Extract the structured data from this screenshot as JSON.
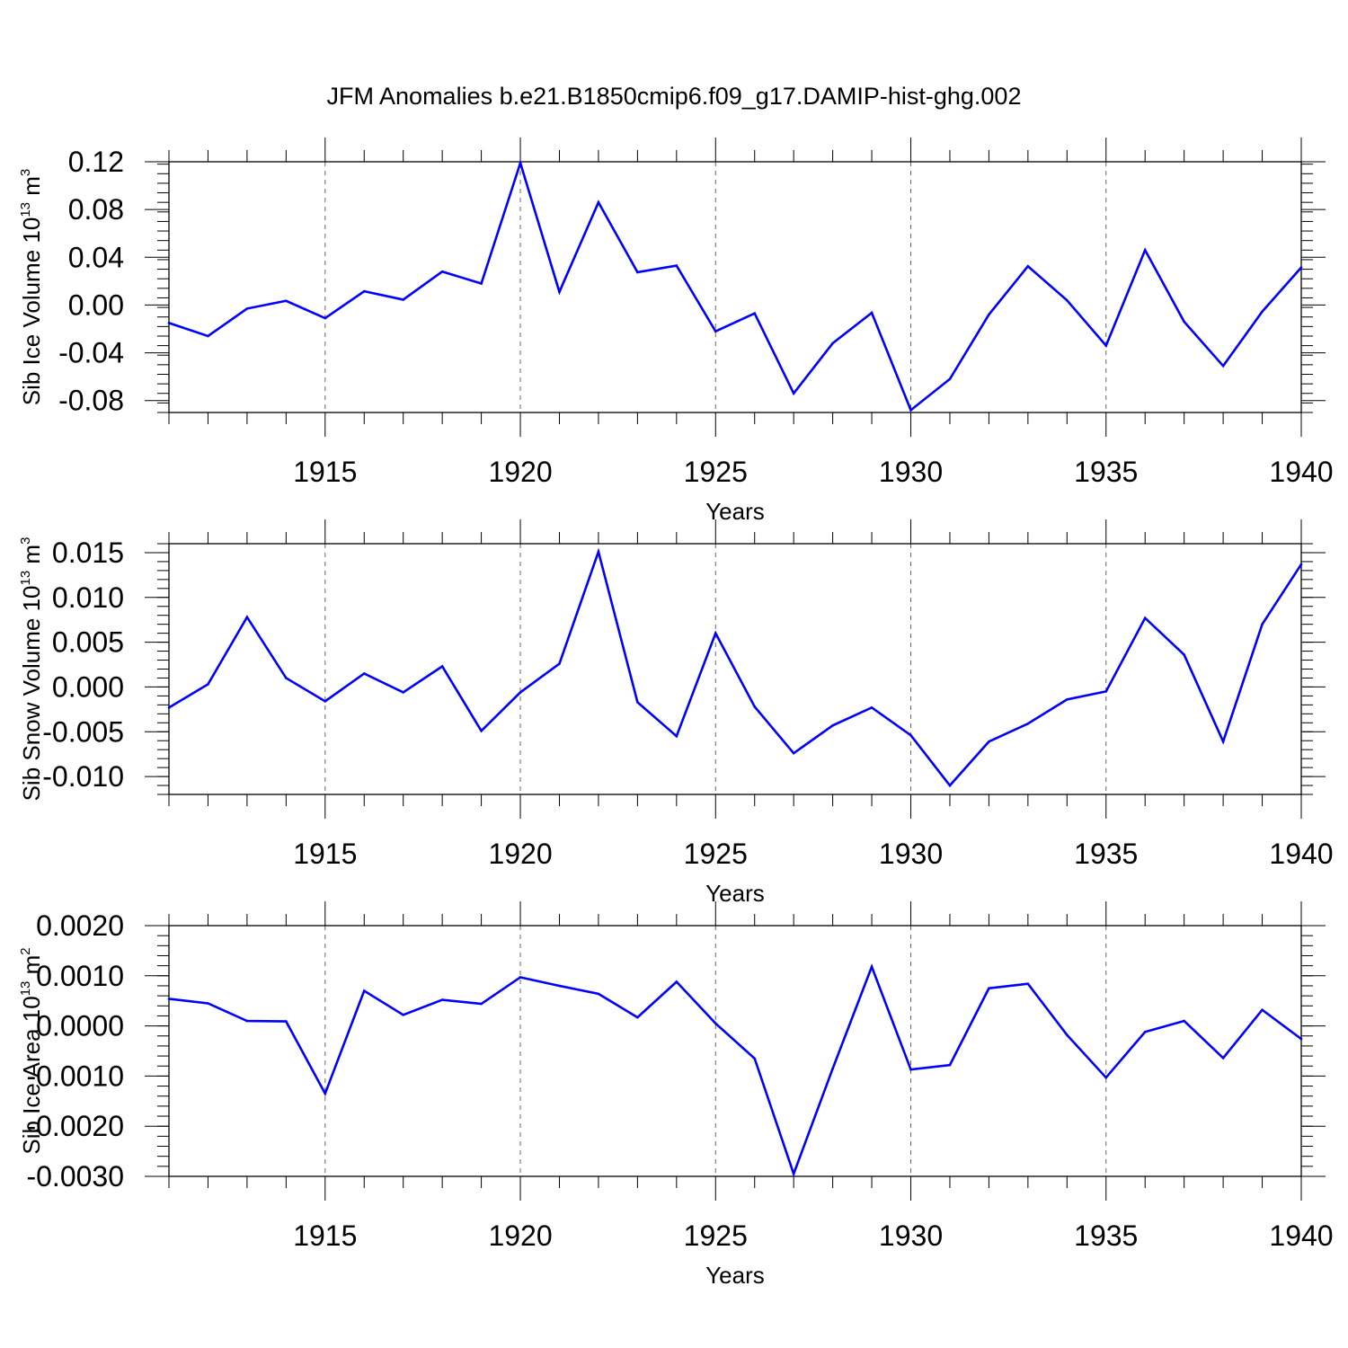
{
  "title": "JFM Anomalies b.e21.B1850cmip6.f09_g17.DAMIP-hist-ghg.002",
  "colors": {
    "line": "#0000ff",
    "axis": "#000000",
    "grid": "#666666"
  },
  "chart_data": [
    {
      "type": "line",
      "ylabel": "Sib Ice Volume 10",
      "ylabel_exp": "13",
      "ylabel_unit": " m",
      "ylabel_unit_exp": "3",
      "xlabel": "Years",
      "xlim": [
        1911,
        1940
      ],
      "ylim": [
        -0.09,
        0.12
      ],
      "xticks": [
        1915,
        1920,
        1925,
        1930,
        1935,
        1940
      ],
      "yticks": [
        0.12,
        0.08,
        0.04,
        0.0,
        -0.04,
        -0.08
      ],
      "ytick_labels": [
        "0.12",
        "0.08",
        "0.04",
        "0.00",
        "-0.04",
        "-0.08"
      ],
      "yminor_step": 0.008,
      "x": [
        1911,
        1912,
        1913,
        1914,
        1915,
        1916,
        1917,
        1918,
        1919,
        1920,
        1921,
        1922,
        1923,
        1924,
        1925,
        1926,
        1927,
        1928,
        1929,
        1930,
        1931,
        1932,
        1933,
        1934,
        1935,
        1936,
        1937,
        1938,
        1939,
        1940
      ],
      "values": [
        -0.015,
        -0.026,
        -0.003,
        0.0035,
        -0.011,
        0.0115,
        0.0045,
        0.028,
        0.018,
        0.119,
        0.011,
        0.086,
        0.0275,
        0.033,
        -0.022,
        -0.007,
        -0.074,
        -0.032,
        -0.0065,
        -0.088,
        -0.062,
        -0.008,
        0.0325,
        0.004,
        -0.034,
        0.046,
        -0.014,
        -0.051,
        -0.0055,
        0.0315
      ]
    },
    {
      "type": "line",
      "ylabel": "Sib Snow Volume 10",
      "ylabel_exp": "13",
      "ylabel_unit": " m",
      "ylabel_unit_exp": "3",
      "xlabel": "Years",
      "xlim": [
        1911,
        1940
      ],
      "ylim": [
        -0.012,
        0.016
      ],
      "xticks": [
        1915,
        1920,
        1925,
        1930,
        1935,
        1940
      ],
      "yticks": [
        0.015,
        0.01,
        0.005,
        0.0,
        -0.005,
        -0.01
      ],
      "ytick_labels": [
        "0.015",
        "0.010",
        "0.005",
        "0.000",
        "-0.005",
        "-0.010"
      ],
      "yminor_step": 0.001,
      "x": [
        1911,
        1912,
        1913,
        1914,
        1915,
        1916,
        1917,
        1918,
        1919,
        1920,
        1921,
        1922,
        1923,
        1924,
        1925,
        1926,
        1927,
        1928,
        1929,
        1930,
        1931,
        1932,
        1933,
        1934,
        1935,
        1936,
        1937,
        1938,
        1939,
        1940
      ],
      "values": [
        -0.0023,
        0.0003,
        0.0078,
        0.001,
        -0.0016,
        0.0015,
        -0.0006,
        0.0023,
        -0.0049,
        -0.0006,
        0.0026,
        0.0151,
        -0.0017,
        -0.0055,
        0.006,
        -0.0022,
        -0.0074,
        -0.0043,
        -0.0023,
        -0.0054,
        -0.011,
        -0.0061,
        -0.0041,
        -0.0014,
        -0.0005,
        0.0077,
        0.0036,
        -0.0061,
        0.007,
        0.0137
      ]
    },
    {
      "type": "line",
      "ylabel": "Sib Ice Area 10",
      "ylabel_exp": "13",
      "ylabel_unit": " m",
      "ylabel_unit_exp": "2",
      "xlabel": "Years",
      "xlim": [
        1911,
        1940
      ],
      "ylim": [
        -0.003,
        0.002
      ],
      "xticks": [
        1915,
        1920,
        1925,
        1930,
        1935,
        1940
      ],
      "yticks": [
        0.002,
        0.001,
        0.0,
        -0.001,
        -0.002,
        -0.003
      ],
      "ytick_labels": [
        "0.0020",
        "0.0010",
        "0.0000",
        "-0.0010",
        "-0.0020",
        "-0.0030"
      ],
      "yminor_step": 0.0002,
      "x": [
        1911,
        1912,
        1913,
        1914,
        1915,
        1916,
        1917,
        1918,
        1919,
        1920,
        1921,
        1922,
        1923,
        1924,
        1925,
        1926,
        1927,
        1928,
        1929,
        1930,
        1931,
        1932,
        1933,
        1934,
        1935,
        1936,
        1937,
        1938,
        1939,
        1940
      ],
      "values": [
        0.00054,
        0.00045,
        0.0001,
        9e-05,
        -0.00135,
        0.0007,
        0.00022,
        0.00052,
        0.00044,
        0.00097,
        0.0008,
        0.00064,
        0.00017,
        0.00088,
        5e-05,
        -0.00065,
        -0.00295,
        -0.00085,
        0.00118,
        -0.00087,
        -0.00078,
        0.00075,
        0.00084,
        -0.00018,
        -0.00103,
        -0.00012,
        0.0001,
        -0.00064,
        0.00032,
        -0.00026
      ]
    }
  ]
}
